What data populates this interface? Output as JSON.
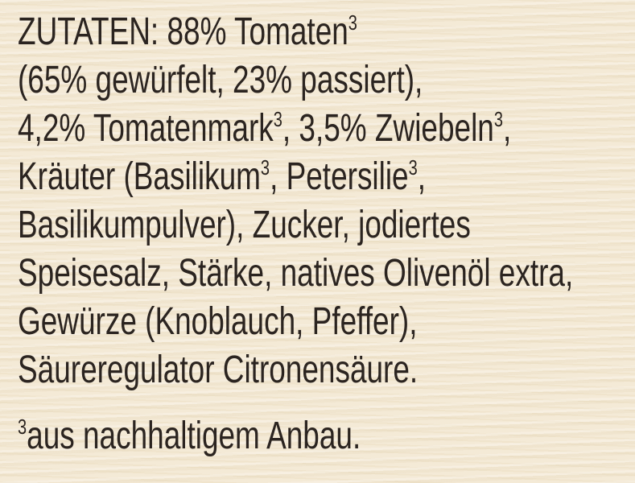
{
  "ingredients": {
    "line1": {
      "text": "ZUTATEN: 88% Tomaten",
      "sup": "3"
    },
    "line2": {
      "text": "(65% gewürfelt, 23% passiert),"
    },
    "line3": {
      "a": "4,2% Tomatenmark",
      "sup1": "3",
      "b": ", 3,5% Zwiebeln",
      "sup2": "3",
      "c": ","
    },
    "line4": {
      "a": "Kräuter (Basilikum",
      "sup1": "3",
      "b": ", Petersilie",
      "sup2": "3",
      "c": ","
    },
    "line5": {
      "text": "Basilikumpulver), Zucker, jodiertes"
    },
    "line6": {
      "text": "Speisesalz, Stärke, natives Olivenöl extra,"
    },
    "line7": {
      "text": "Gewürze (Knoblauch, Pfeffer),"
    },
    "line8": {
      "text": "Säureregulator Citronensäure."
    }
  },
  "footnote": {
    "sup": "3",
    "text": "aus nachhaltigem Anbau."
  },
  "colors": {
    "text": "#2b2420",
    "background": "#f3e8d2"
  }
}
